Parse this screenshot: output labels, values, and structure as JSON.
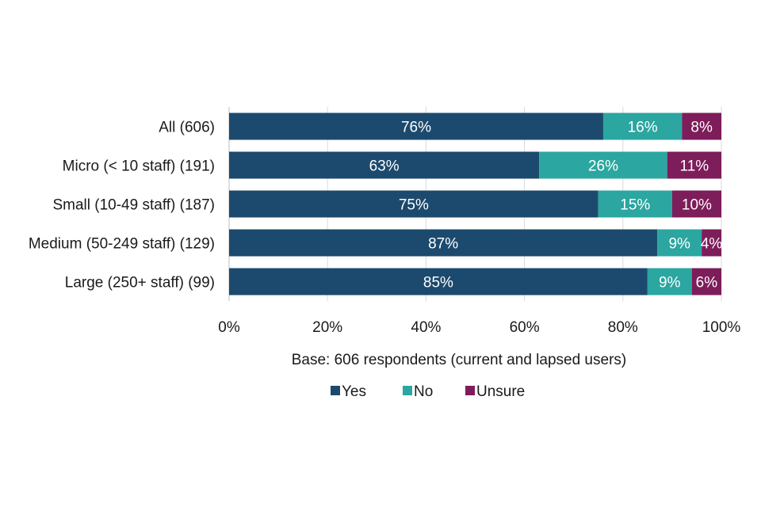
{
  "chart_data": {
    "type": "bar",
    "orientation": "horizontal",
    "stacked": true,
    "title": "",
    "categories": [
      "All (606)",
      "Micro (< 10 staff) (191)",
      "Small (10-49 staff) (187)",
      "Medium (50-249 staff) (129)",
      "Large (250+ staff) (99)"
    ],
    "series": [
      {
        "name": "Yes",
        "color": "#1c4a6e",
        "values": [
          76,
          63,
          75,
          87,
          85
        ],
        "labels": [
          "76%",
          "63%",
          "75%",
          "87%",
          "85%"
        ]
      },
      {
        "name": "No",
        "color": "#2ba6a0",
        "values": [
          16,
          26,
          15,
          9,
          9
        ],
        "labels": [
          "16%",
          "26%",
          "15%",
          "9%",
          "9%"
        ]
      },
      {
        "name": "Unsure",
        "color": "#7d1d5a",
        "values": [
          8,
          11,
          10,
          4,
          6
        ],
        "labels": [
          "8%",
          "11%",
          "10%",
          "4%",
          "6%"
        ]
      }
    ],
    "xlim": [
      0,
      100
    ],
    "xticks": [
      0,
      20,
      40,
      60,
      80,
      100
    ],
    "xtick_labels": [
      "0%",
      "20%",
      "40%",
      "60%",
      "80%",
      "100%"
    ],
    "xlabel": "Base: 606 respondents (current and lapsed users)",
    "ylabel": "",
    "grid": true,
    "legend_position": "bottom"
  }
}
